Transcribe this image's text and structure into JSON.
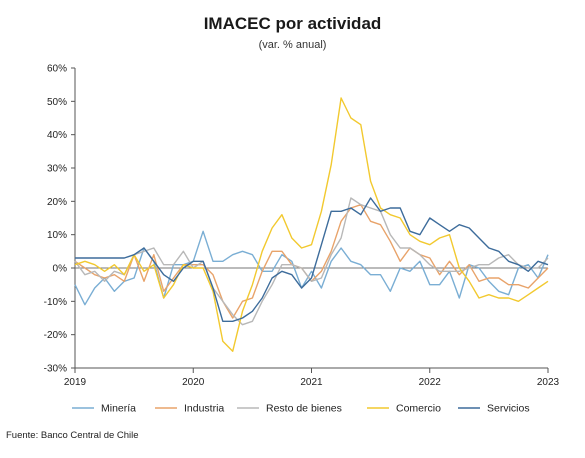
{
  "title": "IMACEC por actividad",
  "subtitle": "(var. % anual)",
  "source": "Fuente: Banco Central de Chile",
  "chart_data": {
    "type": "line",
    "title": "IMACEC por actividad",
    "subtitle": "(var. % anual)",
    "xlabel": "",
    "ylabel": "",
    "x_tick_labels": [
      "2019",
      "2020",
      "2021",
      "2022",
      "2023"
    ],
    "y_tick_labels": [
      "-30%",
      "-20%",
      "-10%",
      "0%",
      "10%",
      "20%",
      "30%",
      "40%",
      "50%",
      "60%"
    ],
    "ylim": [
      -30,
      60
    ],
    "xlim": [
      "2019-01",
      "2023-01"
    ],
    "grid": false,
    "legend_position": "bottom",
    "x": [
      "2019-01",
      "2019-02",
      "2019-03",
      "2019-04",
      "2019-05",
      "2019-06",
      "2019-07",
      "2019-08",
      "2019-09",
      "2019-10",
      "2019-11",
      "2019-12",
      "2020-01",
      "2020-02",
      "2020-03",
      "2020-04",
      "2020-05",
      "2020-06",
      "2020-07",
      "2020-08",
      "2020-09",
      "2020-10",
      "2020-11",
      "2020-12",
      "2021-01",
      "2021-02",
      "2021-03",
      "2021-04",
      "2021-05",
      "2021-06",
      "2021-07",
      "2021-08",
      "2021-09",
      "2021-10",
      "2021-11",
      "2021-12",
      "2022-01",
      "2022-02",
      "2022-03",
      "2022-04",
      "2022-05",
      "2022-06",
      "2022-07",
      "2022-08",
      "2022-09",
      "2022-10",
      "2022-11",
      "2022-12",
      "2023-01"
    ],
    "series": [
      {
        "name": "Minería",
        "color": "#7aaed4",
        "values": [
          -5,
          -11,
          -6,
          -3,
          -7,
          -4,
          -3,
          6,
          2,
          -9,
          1,
          1,
          2,
          11,
          2,
          2,
          4,
          5,
          4,
          -1,
          -1,
          4,
          2,
          -6,
          -1,
          -6,
          2,
          6,
          2,
          1,
          -2,
          -2,
          -7,
          0,
          -1,
          2,
          -5,
          -5,
          -1,
          -9,
          1,
          0,
          -4,
          -7,
          -8,
          0,
          1,
          -3,
          4
        ]
      },
      {
        "name": "Industria",
        "color": "#e8a36a",
        "values": [
          2,
          0,
          -2,
          -3,
          -2,
          -4,
          4,
          -4,
          4,
          -7,
          -3,
          1,
          1,
          1,
          -2,
          -10,
          -15,
          -10,
          -9,
          -1,
          5,
          5,
          1,
          0,
          -4,
          -1,
          5,
          14,
          18,
          19,
          14,
          13,
          8,
          2,
          6,
          4,
          3,
          -2,
          2,
          -2,
          1,
          -4,
          -3,
          -3,
          -5,
          -5,
          -6,
          -3,
          0
        ]
      },
      {
        "name": "Resto de bienes",
        "color": "#b8b8b8",
        "values": [
          2,
          -2,
          -1,
          -4,
          -1,
          -2,
          4,
          5,
          6,
          1,
          1,
          5,
          0,
          2,
          -6,
          -10,
          -14,
          -17,
          -16,
          -10,
          -5,
          1,
          1,
          0,
          -4,
          -3,
          4,
          9,
          21,
          19,
          18,
          17,
          10,
          6,
          6,
          4,
          1,
          -1,
          -1,
          -1,
          0,
          1,
          1,
          3,
          4,
          1,
          0,
          0,
          3
        ]
      },
      {
        "name": "Comercio",
        "color": "#f2c92f",
        "values": [
          1,
          2,
          1,
          -1,
          1,
          -2,
          4,
          -1,
          1,
          -9,
          -5,
          1,
          0,
          0,
          -7,
          -22,
          -25,
          -13,
          -5,
          5,
          12,
          16,
          9,
          6,
          7,
          17,
          31,
          51,
          45,
          43,
          26,
          18,
          16,
          15,
          10,
          8,
          7,
          9,
          10,
          0,
          -4,
          -9,
          -8,
          -9,
          -9,
          -10,
          -8,
          -6,
          -4
        ]
      },
      {
        "name": "Servicios",
        "color": "#3d6c9b",
        "values": [
          3,
          3,
          3,
          3,
          3,
          3,
          4,
          6,
          2,
          -2,
          -4,
          0,
          2,
          2,
          -6,
          -16,
          -16,
          -15,
          -13,
          -9,
          -3,
          -1,
          -2,
          -6,
          -3,
          7,
          17,
          17,
          18,
          16,
          21,
          17,
          18,
          18,
          11,
          10,
          15,
          13,
          11,
          13,
          12,
          9,
          6,
          5,
          2,
          1,
          -1,
          2,
          1
        ]
      }
    ]
  }
}
